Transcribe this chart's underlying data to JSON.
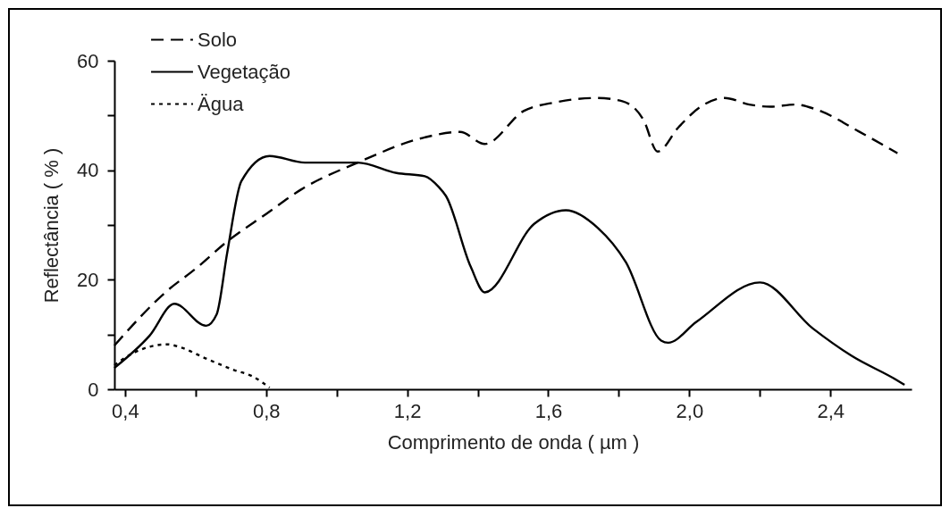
{
  "chart_data": {
    "type": "line",
    "xlabel": "Comprimento de onda ( µm )",
    "ylabel": "Reflectância ( % )",
    "xlim": [
      0.37,
      2.63
    ],
    "ylim": [
      0,
      60
    ],
    "xticks": [
      {
        "value": 0.4,
        "label": "0,4"
      },
      {
        "value": 0.6,
        "label": null
      },
      {
        "value": 0.8,
        "label": "0,8"
      },
      {
        "value": 1.0,
        "label": null
      },
      {
        "value": 1.2,
        "label": "1,2"
      },
      {
        "value": 1.4,
        "label": null
      },
      {
        "value": 1.6,
        "label": "1,6"
      },
      {
        "value": 1.8,
        "label": null
      },
      {
        "value": 2.0,
        "label": "2,0"
      },
      {
        "value": 2.2,
        "label": null
      },
      {
        "value": 2.4,
        "label": "2,4"
      }
    ],
    "yticks": [
      0,
      {
        "value": 10,
        "label": null
      },
      20,
      {
        "value": 30,
        "label": null
      },
      40,
      {
        "value": 50,
        "label": null
      },
      60
    ],
    "legend": "top left",
    "grid": false,
    "series": [
      {
        "name": "Solo",
        "color": "#000000",
        "line_style": "dashed",
        "x": [
          0.37,
          0.52,
          0.6,
          0.69,
          0.8,
          0.9,
          1.06,
          1.25,
          1.35,
          1.42,
          1.53,
          1.62,
          1.74,
          1.81,
          1.87,
          1.91,
          1.97,
          2.03,
          2.1,
          2.17,
          2.23,
          2.3,
          2.36,
          2.48,
          2.59
        ],
        "values": [
          8,
          18,
          22,
          27,
          32,
          36.5,
          41.4,
          46,
          47,
          44.8,
          50.8,
          52.4,
          53.2,
          52.6,
          49.2,
          43.4,
          47.9,
          51.5,
          53.2,
          52,
          51.6,
          52,
          51.1,
          47.1,
          43.1
        ]
      },
      {
        "name": "Vegetação",
        "color": "#000000",
        "line_style": "solid",
        "x": [
          0.37,
          0.47,
          0.54,
          0.63,
          0.66,
          0.69,
          0.73,
          0.81,
          0.91,
          1.06,
          1.17,
          1.25,
          1.29,
          1.31,
          1.38,
          1.42,
          1.56,
          1.65,
          1.74,
          1.82,
          1.92,
          1.94,
          2.02,
          2.2,
          2.35,
          2.46,
          2.59,
          2.61
        ],
        "values": [
          3.9,
          9.8,
          15.6,
          11.6,
          13.7,
          25,
          38,
          42.6,
          41.4,
          41.4,
          39.5,
          38.9,
          36.9,
          35.3,
          22.4,
          17.7,
          30.2,
          32.7,
          29.5,
          23.2,
          8.9,
          8.5,
          12.3,
          19.5,
          11.1,
          6.1,
          1.6,
          0.8
        ]
      },
      {
        "name": "Ägua",
        "color": "#000000",
        "line_style": "dotted",
        "x": [
          0.37,
          0.42,
          0.52,
          0.56,
          0.63,
          0.71,
          0.76,
          0.81
        ],
        "values": [
          4.4,
          6.5,
          8.2,
          7.6,
          5.6,
          3.5,
          2.4,
          0.3
        ]
      }
    ]
  }
}
